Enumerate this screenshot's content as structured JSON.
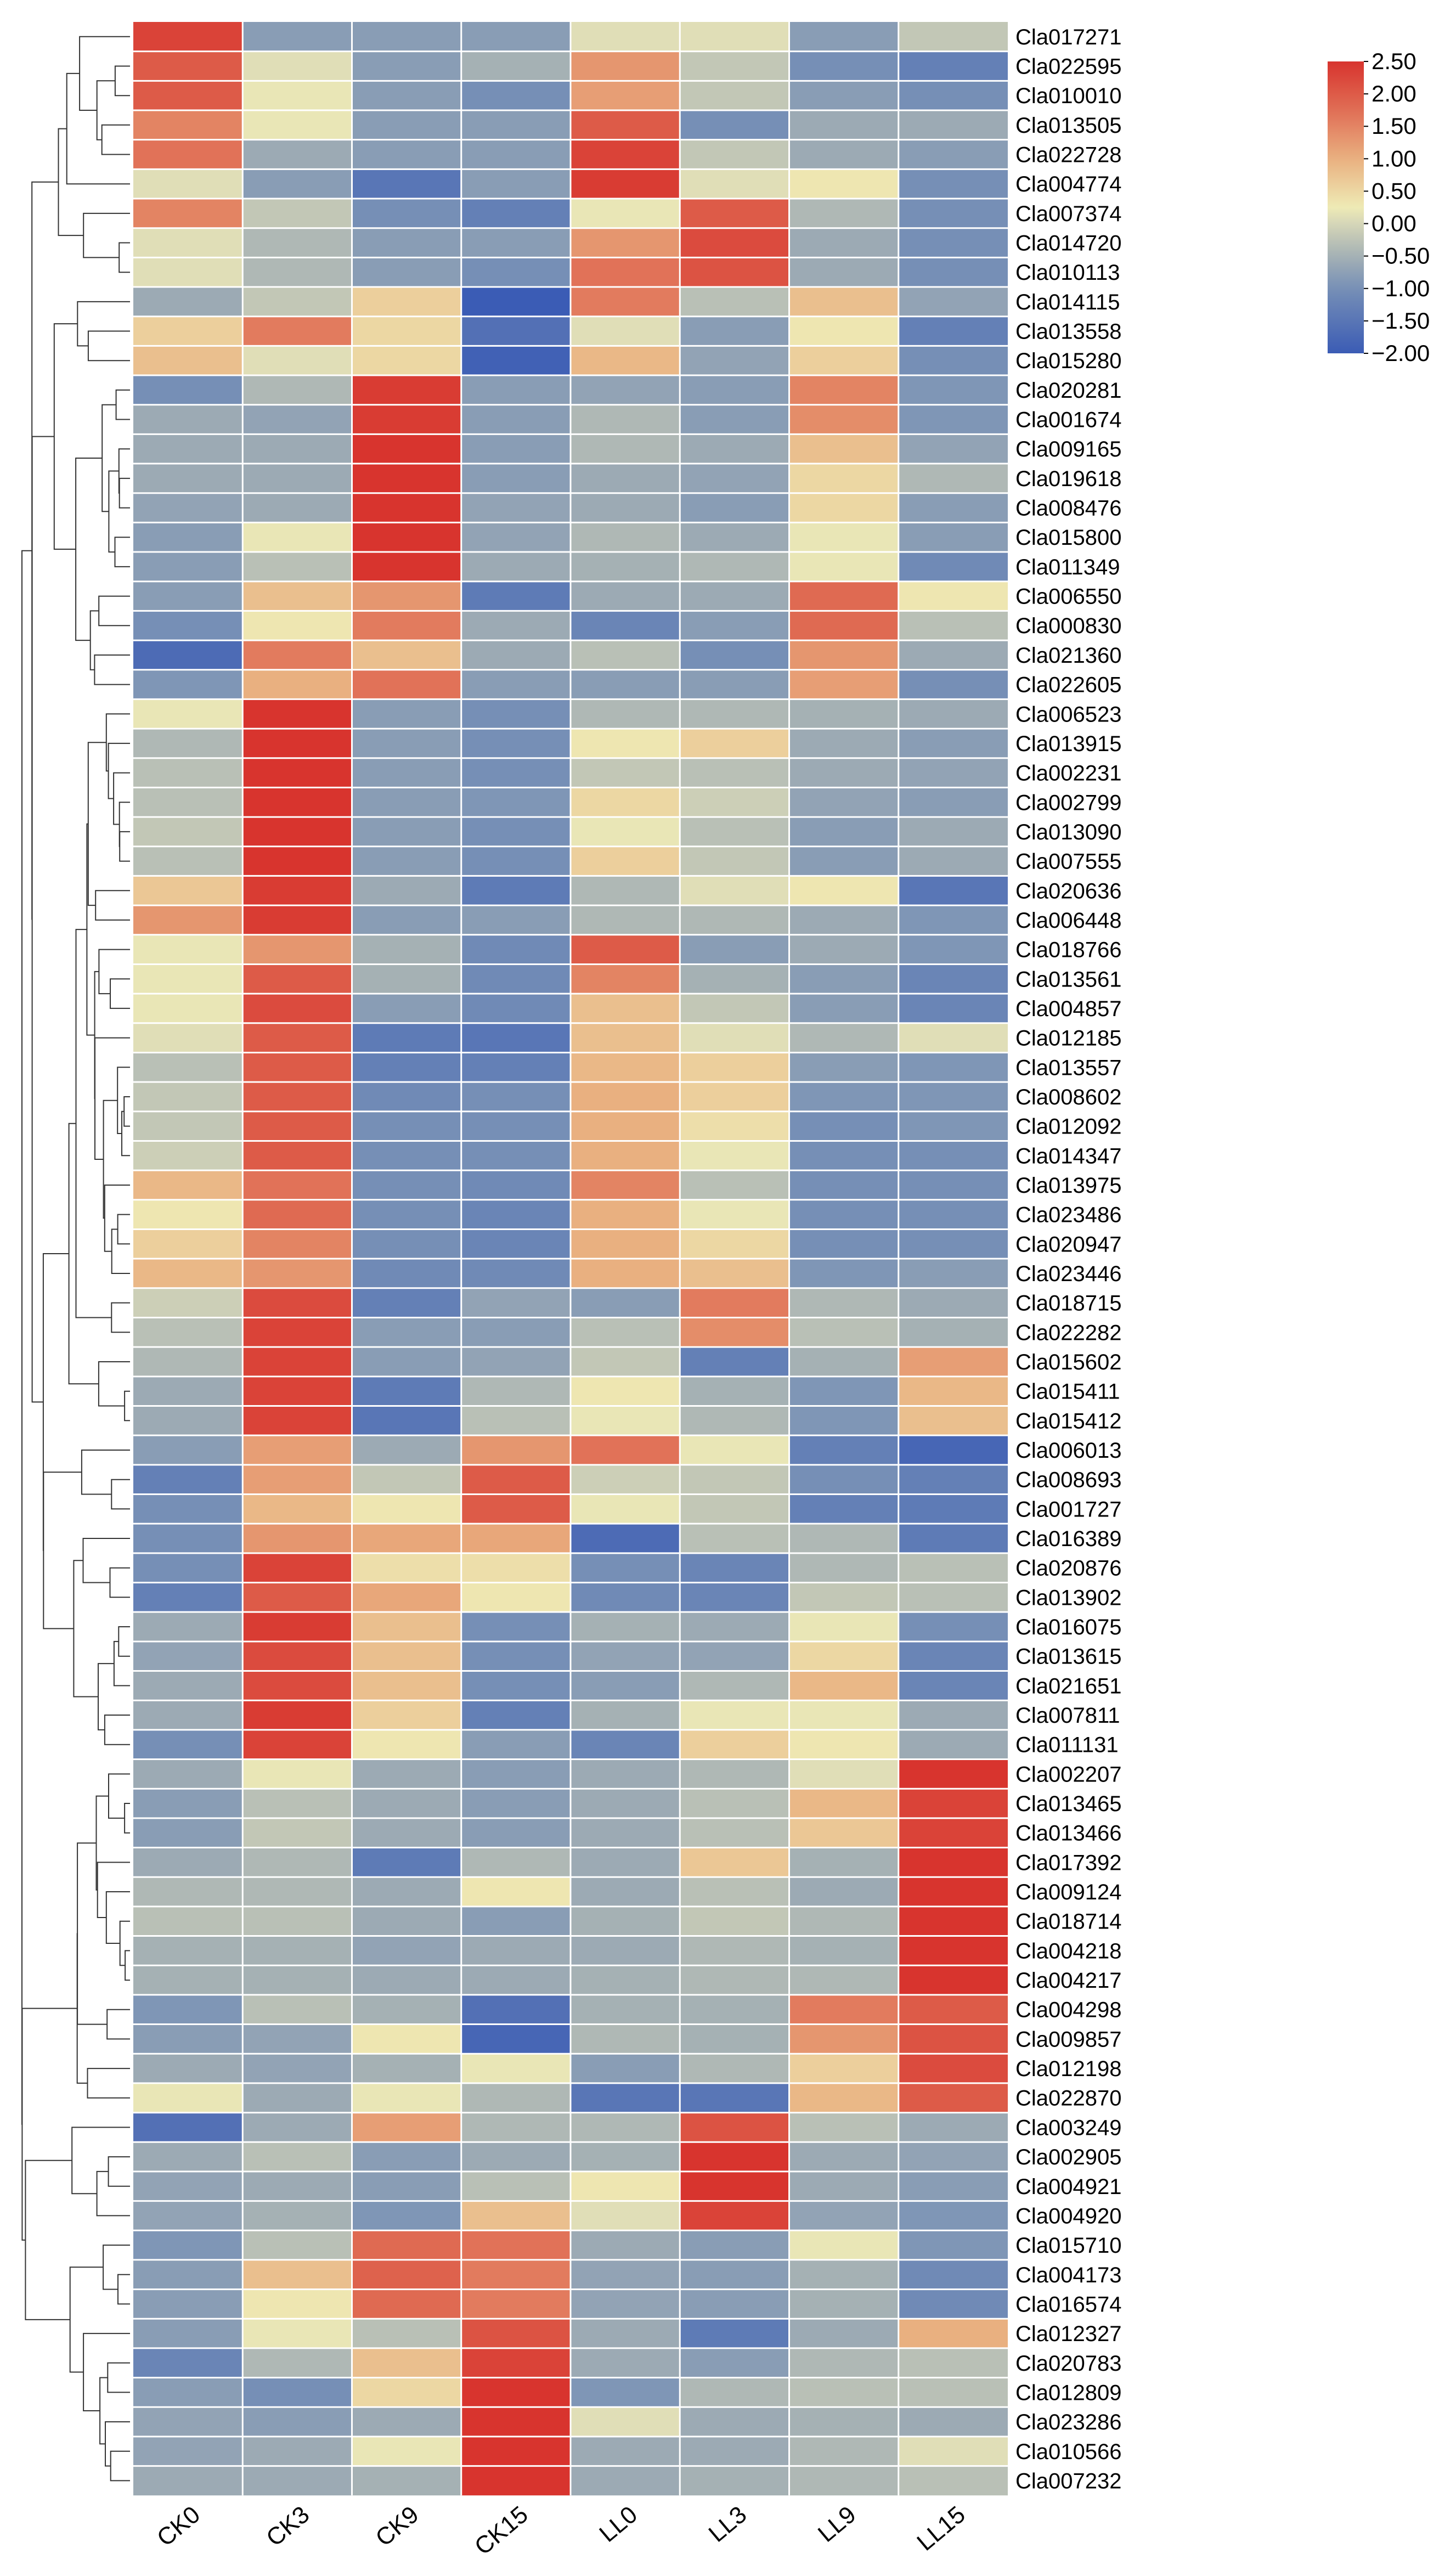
{
  "chart_data": {
    "type": "heatmap",
    "title": "",
    "xlabel": "",
    "ylabel": "",
    "columns": [
      "CK0",
      "CK3",
      "CK9",
      "CK15",
      "LL0",
      "LL3",
      "LL9",
      "LL15"
    ],
    "rows": [
      "Cla017271",
      "Cla022595",
      "Cla010010",
      "Cla013505",
      "Cla022728",
      "Cla004774",
      "Cla007374",
      "Cla014720",
      "Cla010113",
      "Cla014115",
      "Cla013558",
      "Cla015280",
      "Cla020281",
      "Cla001674",
      "Cla009165",
      "Cla019618",
      "Cla008476",
      "Cla015800",
      "Cla011349",
      "Cla006550",
      "Cla000830",
      "Cla021360",
      "Cla022605",
      "Cla006523",
      "Cla013915",
      "Cla002231",
      "Cla002799",
      "Cla013090",
      "Cla007555",
      "Cla020636",
      "Cla006448",
      "Cla018766",
      "Cla013561",
      "Cla004857",
      "Cla012185",
      "Cla013557",
      "Cla008602",
      "Cla012092",
      "Cla014347",
      "Cla013975",
      "Cla023486",
      "Cla020947",
      "Cla023446",
      "Cla018715",
      "Cla022282",
      "Cla015602",
      "Cla015411",
      "Cla015412",
      "Cla006013",
      "Cla008693",
      "Cla001727",
      "Cla016389",
      "Cla020876",
      "Cla013902",
      "Cla016075",
      "Cla013615",
      "Cla021651",
      "Cla007811",
      "Cla011131",
      "Cla002207",
      "Cla013465",
      "Cla013466",
      "Cla017392",
      "Cla009124",
      "Cla018714",
      "Cla004218",
      "Cla004217",
      "Cla004298",
      "Cla009857",
      "Cla012198",
      "Cla022870",
      "Cla003249",
      "Cla002905",
      "Cla004921",
      "Cla004920",
      "Cla015710",
      "Cla004173",
      "Cla016574",
      "Cla012327",
      "Cla020783",
      "Cla012809",
      "Cla023286",
      "Cla010566",
      "Cla007232"
    ],
    "values": [
      [
        2.3,
        -0.8,
        -0.8,
        -0.8,
        0.1,
        0.1,
        -0.8,
        -0.2
      ],
      [
        2.0,
        0.1,
        -0.8,
        -0.5,
        1.3,
        -0.2,
        -1.0,
        -1.3
      ],
      [
        2.0,
        0.2,
        -0.8,
        -1.0,
        1.2,
        -0.2,
        -0.8,
        -1.0
      ],
      [
        1.5,
        0.2,
        -0.8,
        -0.8,
        2.0,
        -1.0,
        -0.6,
        -0.6
      ],
      [
        1.7,
        -0.6,
        -0.8,
        -0.8,
        2.3,
        -0.2,
        -0.6,
        -0.8
      ],
      [
        0.1,
        -0.8,
        -1.5,
        -0.8,
        2.4,
        0.1,
        0.3,
        -1.0
      ],
      [
        1.5,
        -0.2,
        -1.0,
        -1.3,
        0.2,
        2.0,
        -0.4,
        -1.0
      ],
      [
        0.1,
        -0.4,
        -0.8,
        -0.8,
        1.3,
        2.2,
        -0.6,
        -1.0
      ],
      [
        0.1,
        -0.4,
        -0.8,
        -1.0,
        1.7,
        2.1,
        -0.6,
        -1.0
      ],
      [
        -0.6,
        -0.2,
        0.6,
        -2.0,
        1.6,
        -0.3,
        0.8,
        -0.7
      ],
      [
        0.6,
        1.6,
        0.5,
        -1.6,
        0.1,
        -0.8,
        0.3,
        -1.3
      ],
      [
        0.8,
        0.1,
        0.5,
        -1.9,
        0.9,
        -0.7,
        0.6,
        -1.0
      ],
      [
        -1.0,
        -0.4,
        2.4,
        -0.8,
        -0.7,
        -0.8,
        1.5,
        -0.9
      ],
      [
        -0.6,
        -0.7,
        2.4,
        -0.8,
        -0.4,
        -0.8,
        1.4,
        -0.9
      ],
      [
        -0.6,
        -0.6,
        2.6,
        -0.8,
        -0.4,
        -0.6,
        0.8,
        -0.7
      ],
      [
        -0.6,
        -0.6,
        2.7,
        -0.8,
        -0.6,
        -0.7,
        0.5,
        -0.4
      ],
      [
        -0.7,
        -0.6,
        2.6,
        -0.7,
        -0.6,
        -0.8,
        0.5,
        -0.8
      ],
      [
        -0.8,
        0.2,
        2.5,
        -0.7,
        -0.4,
        -0.6,
        0.2,
        -0.8
      ],
      [
        -0.8,
        -0.3,
        2.6,
        -0.6,
        -0.5,
        -0.4,
        0.2,
        -1.1
      ],
      [
        -0.8,
        0.8,
        1.3,
        -1.4,
        -0.6,
        -0.6,
        1.8,
        0.3
      ],
      [
        -1.0,
        0.3,
        1.6,
        -0.6,
        -1.2,
        -0.8,
        1.8,
        -0.3
      ],
      [
        -1.7,
        1.6,
        0.8,
        -0.6,
        -0.3,
        -1.0,
        1.3,
        -0.6
      ],
      [
        -0.9,
        1.0,
        1.7,
        -0.8,
        -0.8,
        -0.8,
        1.2,
        -1.0
      ],
      [
        0.2,
        2.6,
        -0.8,
        -1.0,
        -0.4,
        -0.4,
        -0.5,
        -0.6
      ],
      [
        -0.4,
        2.6,
        -0.8,
        -1.0,
        0.3,
        0.6,
        -0.6,
        -0.8
      ],
      [
        -0.3,
        2.8,
        -0.8,
        -1.0,
        -0.2,
        -0.3,
        -0.6,
        -0.7
      ],
      [
        -0.3,
        2.7,
        -0.8,
        -0.9,
        0.5,
        -0.1,
        -0.7,
        -0.8
      ],
      [
        -0.2,
        2.7,
        -0.8,
        -1.0,
        0.2,
        -0.3,
        -0.8,
        -0.6
      ],
      [
        -0.3,
        2.6,
        -0.8,
        -1.0,
        0.6,
        -0.2,
        -0.8,
        -0.6
      ],
      [
        0.7,
        2.4,
        -0.6,
        -1.4,
        -0.4,
        0.1,
        0.3,
        -1.5
      ],
      [
        1.3,
        2.4,
        -0.8,
        -0.8,
        -0.4,
        -0.4,
        -0.6,
        -0.9
      ],
      [
        0.2,
        1.3,
        -0.5,
        -1.1,
        2.0,
        -0.8,
        -0.6,
        -0.9
      ],
      [
        0.2,
        2.0,
        -0.5,
        -1.1,
        1.5,
        -0.5,
        -0.8,
        -1.2
      ],
      [
        0.2,
        2.2,
        -0.8,
        -1.1,
        0.8,
        -0.2,
        -0.8,
        -1.2
      ],
      [
        0.1,
        2.0,
        -1.4,
        -1.5,
        0.8,
        0.1,
        -0.4,
        0.1
      ],
      [
        -0.3,
        2.0,
        -1.3,
        -1.3,
        0.9,
        0.6,
        -0.8,
        -0.9
      ],
      [
        -0.2,
        2.0,
        -1.1,
        -1.0,
        1.0,
        0.6,
        -0.9,
        -0.9
      ],
      [
        -0.2,
        2.0,
        -1.0,
        -1.0,
        1.0,
        0.4,
        -1.0,
        -0.9
      ],
      [
        -0.1,
        2.0,
        -1.0,
        -1.0,
        1.0,
        0.2,
        -1.0,
        -1.0
      ],
      [
        0.9,
        1.7,
        -1.0,
        -1.1,
        1.5,
        -0.3,
        -1.0,
        -1.0
      ],
      [
        0.3,
        1.8,
        -1.0,
        -1.2,
        1.0,
        0.2,
        -1.0,
        -1.0
      ],
      [
        0.6,
        1.5,
        -1.0,
        -1.2,
        1.0,
        0.5,
        -1.0,
        -1.0
      ],
      [
        0.9,
        1.3,
        -1.1,
        -1.1,
        1.0,
        0.8,
        -0.9,
        -0.8
      ],
      [
        -0.1,
        2.2,
        -1.3,
        -0.7,
        -0.8,
        1.6,
        -0.4,
        -0.6
      ],
      [
        -0.3,
        2.3,
        -0.8,
        -0.8,
        -0.3,
        1.4,
        -0.3,
        -0.5
      ],
      [
        -0.4,
        2.3,
        -0.8,
        -0.7,
        -0.2,
        -1.3,
        -0.5,
        1.2
      ],
      [
        -0.6,
        2.3,
        -1.4,
        -0.4,
        0.3,
        -0.5,
        -0.9,
        0.9
      ],
      [
        -0.6,
        2.3,
        -1.5,
        -0.3,
        0.2,
        -0.4,
        -0.9,
        0.8
      ],
      [
        -0.8,
        1.2,
        -0.6,
        1.3,
        1.7,
        0.2,
        -1.3,
        -1.8
      ],
      [
        -1.3,
        1.2,
        -0.2,
        2.0,
        -0.1,
        -0.2,
        -1.0,
        -1.3
      ],
      [
        -1.0,
        0.9,
        0.3,
        2.0,
        0.2,
        -0.2,
        -1.3,
        -1.4
      ],
      [
        -1.0,
        1.3,
        1.1,
        1.1,
        -1.7,
        -0.3,
        -0.4,
        -1.4
      ],
      [
        -1.0,
        2.3,
        0.4,
        0.4,
        -1.0,
        -1.2,
        -0.4,
        -0.3
      ],
      [
        -1.3,
        2.0,
        1.1,
        0.3,
        -1.1,
        -1.2,
        -0.2,
        -0.3
      ],
      [
        -0.6,
        2.4,
        0.8,
        -1.0,
        -0.5,
        -0.6,
        0.2,
        -1.0
      ],
      [
        -0.7,
        2.2,
        0.8,
        -1.0,
        -0.7,
        -0.7,
        0.5,
        -1.2
      ],
      [
        -0.6,
        2.2,
        0.8,
        -1.0,
        -0.8,
        -0.4,
        0.9,
        -1.2
      ],
      [
        -0.6,
        2.4,
        0.6,
        -1.3,
        -0.5,
        0.2,
        0.2,
        -0.6
      ],
      [
        -1.0,
        2.3,
        0.3,
        -0.8,
        -1.2,
        0.6,
        0.3,
        -0.6
      ],
      [
        -0.6,
        0.2,
        -0.6,
        -0.8,
        -0.6,
        -0.4,
        0.1,
        2.6
      ],
      [
        -0.8,
        -0.3,
        -0.6,
        -0.8,
        -0.6,
        -0.3,
        0.9,
        2.3
      ],
      [
        -0.8,
        -0.2,
        -0.6,
        -0.8,
        -0.6,
        -0.3,
        0.7,
        2.3
      ],
      [
        -0.6,
        -0.4,
        -1.4,
        -0.4,
        -0.6,
        0.7,
        -0.5,
        2.5
      ],
      [
        -0.4,
        -0.4,
        -0.6,
        0.3,
        -0.6,
        -0.3,
        -0.6,
        2.6
      ],
      [
        -0.3,
        -0.3,
        -0.6,
        -0.8,
        -0.5,
        -0.2,
        -0.4,
        2.7
      ],
      [
        -0.5,
        -0.5,
        -0.7,
        -0.6,
        -0.6,
        -0.4,
        -0.5,
        2.8
      ],
      [
        -0.5,
        -0.5,
        -0.6,
        -0.6,
        -0.5,
        -0.4,
        -0.4,
        2.7
      ],
      [
        -0.9,
        -0.3,
        -0.5,
        -1.6,
        -0.5,
        -0.5,
        1.6,
        2.0
      ],
      [
        -0.8,
        -0.7,
        0.3,
        -1.8,
        -0.4,
        -0.5,
        1.3,
        2.1
      ],
      [
        -0.6,
        -0.7,
        -0.5,
        0.2,
        -0.8,
        -0.4,
        0.6,
        2.2
      ],
      [
        0.2,
        -0.6,
        0.2,
        -0.4,
        -1.5,
        -1.5,
        0.9,
        2.0
      ],
      [
        -1.6,
        -0.6,
        1.2,
        -0.4,
        -0.4,
        2.1,
        -0.3,
        -0.6
      ],
      [
        -0.6,
        -0.3,
        -0.8,
        -0.6,
        -0.5,
        2.8,
        -0.6,
        -0.7
      ],
      [
        -0.7,
        -0.6,
        -0.8,
        -0.3,
        0.3,
        2.7,
        -0.6,
        -0.8
      ],
      [
        -0.7,
        -0.5,
        -0.9,
        0.8,
        0.1,
        2.3,
        -0.7,
        -0.9
      ],
      [
        -0.9,
        -0.3,
        1.8,
        1.7,
        -0.6,
        -0.8,
        0.2,
        -0.9
      ],
      [
        -0.8,
        0.8,
        1.9,
        1.6,
        -0.7,
        -0.8,
        -0.5,
        -1.1
      ],
      [
        -0.8,
        0.3,
        1.8,
        1.6,
        -0.7,
        -0.8,
        -0.5,
        -1.1
      ],
      [
        -0.8,
        0.2,
        -0.3,
        2.1,
        -0.6,
        -1.4,
        -0.6,
        1.0
      ],
      [
        -1.2,
        -0.4,
        0.8,
        2.3,
        -0.6,
        -0.8,
        -0.4,
        -0.3
      ],
      [
        -0.8,
        -1.0,
        0.5,
        2.5,
        -0.9,
        -0.4,
        -0.3,
        -0.3
      ],
      [
        -0.7,
        -0.8,
        -0.6,
        2.6,
        0.1,
        -0.6,
        -0.5,
        -0.6
      ],
      [
        -0.7,
        -0.6,
        0.2,
        2.6,
        -0.6,
        -0.6,
        -0.4,
        0.1
      ],
      [
        -0.6,
        -0.6,
        -0.5,
        2.7,
        -0.6,
        -0.5,
        -0.4,
        -0.3
      ]
    ],
    "colorbar": {
      "min": -2.0,
      "max": 2.5,
      "ticks": [
        "2.50",
        "2.00",
        "1.50",
        "1.00",
        "0.50",
        "0.00",
        "−0.50",
        "−1.00",
        "−1.50",
        "−2.00"
      ]
    },
    "colors": {
      "low": "#3b5cb5",
      "mid": "#eeeab5",
      "high": "#d8342e"
    },
    "dendrogram": "row clustering tree (left side)"
  }
}
